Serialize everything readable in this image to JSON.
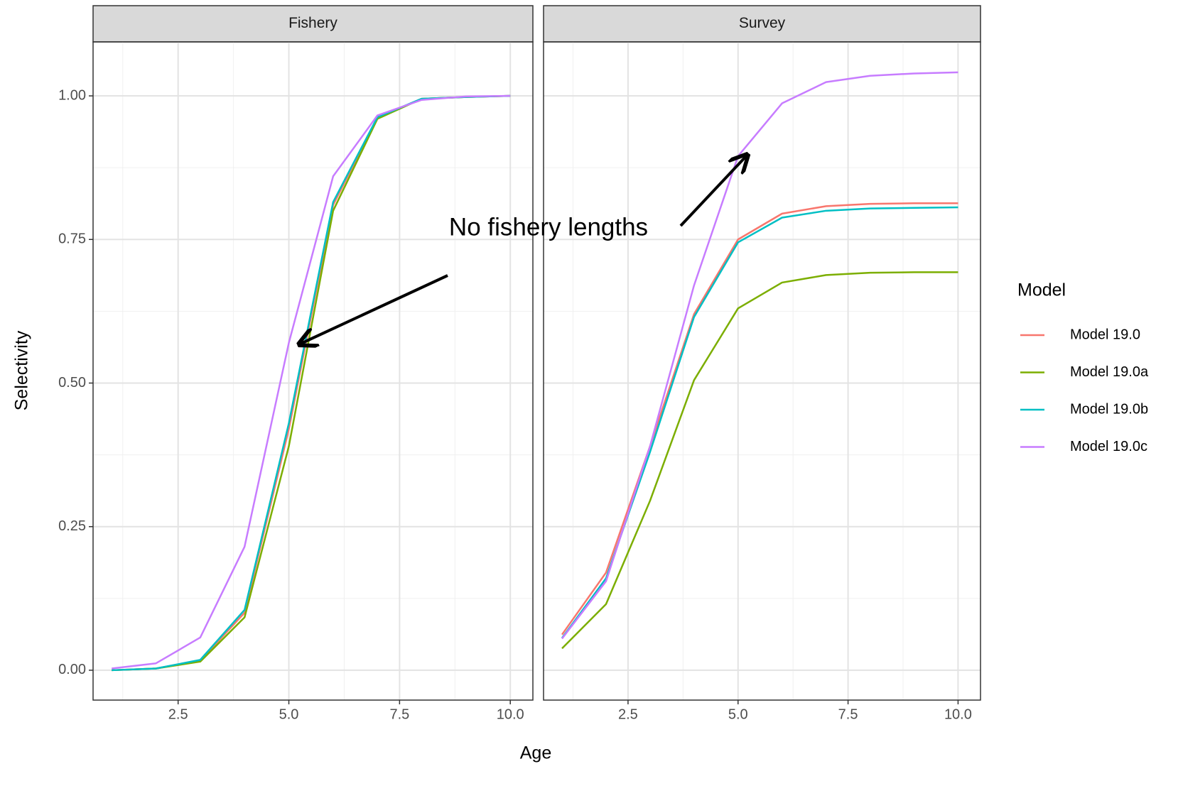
{
  "chart_data": [
    {
      "type": "line",
      "title": "Fishery",
      "x_label": "Age",
      "y_label": "Selectivity",
      "legend_title": "Model",
      "annotation": "No fishery lengths",
      "x": [
        1,
        2,
        3,
        4,
        5,
        6,
        7,
        8,
        9,
        10
      ],
      "series": [
        {
          "name": "Model 19.0",
          "color": "#f8766d",
          "values": [
            0,
            0.003,
            0.017,
            0.1,
            0.42,
            0.81,
            0.962,
            0.995,
            0.998,
            1.0
          ]
        },
        {
          "name": "Model 19.0a",
          "color": "#7cae00",
          "values": [
            0,
            0.003,
            0.015,
            0.092,
            0.39,
            0.8,
            0.96,
            0.995,
            0.998,
            1.0
          ]
        },
        {
          "name": "Model 19.0b",
          "color": "#00bfc4",
          "values": [
            0,
            0.003,
            0.018,
            0.105,
            0.43,
            0.815,
            0.963,
            0.995,
            0.998,
            1.0
          ]
        },
        {
          "name": "Model 19.0c",
          "color": "#c77cff",
          "values": [
            0.003,
            0.012,
            0.057,
            0.215,
            0.57,
            0.86,
            0.966,
            0.993,
            0.999,
            1.0
          ]
        }
      ],
      "xlim": [
        0.58,
        10.51
      ],
      "xticks": [
        2.5,
        {
          "value": 5,
          "label": "5.0"
        },
        7.5,
        {
          "value": 10,
          "label": "10.0"
        }
      ],
      "ylim": [
        -0.052,
        1.094
      ],
      "yticks": [
        {
          "value": 0,
          "label": "0.00"
        },
        0.25,
        {
          "value": 0.5,
          "label": "0.50"
        },
        0.75,
        {
          "value": 1,
          "label": "1.00"
        }
      ],
      "grid": true
    },
    {
      "type": "line",
      "title": "Survey",
      "x": [
        1,
        2,
        3,
        4,
        5,
        6,
        7,
        8,
        9,
        10
      ],
      "series": [
        {
          "name": "Model 19.0",
          "color": "#f8766d",
          "values": [
            0.062,
            0.17,
            0.39,
            0.62,
            0.75,
            0.795,
            0.808,
            0.812,
            0.813,
            0.813
          ]
        },
        {
          "name": "Model 19.0a",
          "color": "#7cae00",
          "values": [
            0.038,
            0.115,
            0.295,
            0.505,
            0.63,
            0.675,
            0.688,
            0.692,
            0.693,
            0.693
          ]
        },
        {
          "name": "Model 19.0b",
          "color": "#00bfc4",
          "values": [
            0.056,
            0.16,
            0.38,
            0.615,
            0.745,
            0.788,
            0.8,
            0.804,
            0.805,
            0.806
          ]
        },
        {
          "name": "Model 19.0c",
          "color": "#c77cff",
          "values": [
            0.055,
            0.155,
            0.39,
            0.67,
            0.895,
            0.987,
            1.024,
            1.035,
            1.039,
            1.041
          ]
        }
      ],
      "xlim": [
        0.58,
        10.51
      ],
      "xticks": [
        2.5,
        {
          "value": 5,
          "label": "5.0"
        },
        7.5,
        {
          "value": 10,
          "label": "10.0"
        }
      ],
      "ylim": [
        -0.052,
        1.094
      ],
      "yticks": [
        {
          "value": 0,
          "label": "0.00"
        },
        0.25,
        {
          "value": 0.5,
          "label": "0.50"
        },
        0.75,
        {
          "value": 1,
          "label": "1.00"
        }
      ],
      "grid": true
    }
  ]
}
